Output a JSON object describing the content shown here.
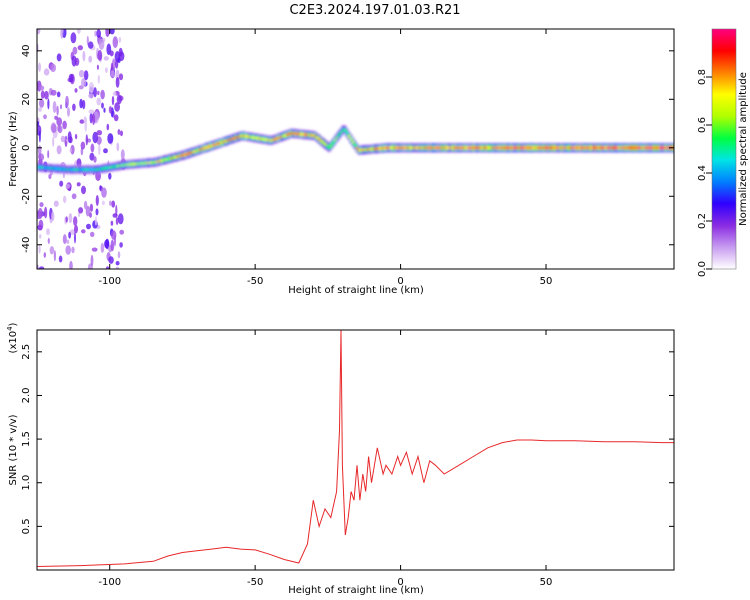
{
  "title": "C2E3.2024.197.01.03.R21",
  "chart_data": [
    {
      "type": "heatmap",
      "xlabel": "Height of straight line (km)",
      "ylabel": "Frequency (Hz)",
      "xlim": [
        -125,
        94
      ],
      "ylim": [
        -50,
        49
      ],
      "xticks": [
        -100,
        -50,
        0,
        50
      ],
      "yticks": [
        -40,
        -20,
        0,
        20,
        40
      ],
      "colorbar": {
        "label": "Normalized spectral amplitude",
        "range": [
          0,
          1
        ],
        "ticks": [
          "0.0",
          "0.2",
          "0.4",
          "0.6",
          "0.8"
        ],
        "colors": [
          "#ffffff",
          "#c89cf0",
          "#8a2be2",
          "#2f00ff",
          "#0080ff",
          "#00e5e5",
          "#00ff40",
          "#b0ff00",
          "#ffff00",
          "#ff8000",
          "#ff0000",
          "#ff0080"
        ]
      },
      "ridge": [
        {
          "x": -125,
          "y": -8,
          "amp": 0.45
        },
        {
          "x": -115,
          "y": -9,
          "amp": 0.4
        },
        {
          "x": -105,
          "y": -9,
          "amp": 0.45
        },
        {
          "x": -95,
          "y": -7,
          "amp": 0.55
        },
        {
          "x": -85,
          "y": -6,
          "amp": 0.6
        },
        {
          "x": -75,
          "y": -3,
          "amp": 0.7
        },
        {
          "x": -65,
          "y": 1,
          "amp": 0.75
        },
        {
          "x": -55,
          "y": 5,
          "amp": 0.7
        },
        {
          "x": -45,
          "y": 3,
          "amp": 0.65
        },
        {
          "x": -38,
          "y": 6,
          "amp": 0.75
        },
        {
          "x": -30,
          "y": 5,
          "amp": 0.7
        },
        {
          "x": -25,
          "y": 0,
          "amp": 0.55
        },
        {
          "x": -20,
          "y": 8,
          "amp": 0.45
        },
        {
          "x": -15,
          "y": -1,
          "amp": 0.7
        },
        {
          "x": -5,
          "y": 0,
          "amp": 0.75
        },
        {
          "x": 5,
          "y": 0,
          "amp": 0.8
        },
        {
          "x": 20,
          "y": 0,
          "amp": 0.8
        },
        {
          "x": 40,
          "y": 0,
          "amp": 0.85
        },
        {
          "x": 60,
          "y": 0,
          "amp": 0.85
        },
        {
          "x": 80,
          "y": 0,
          "amp": 0.9
        },
        {
          "x": 94,
          "y": 0,
          "amp": 0.9
        }
      ]
    },
    {
      "type": "line",
      "xlabel": "Height of straight line (km)",
      "ylabel": "SNR (10 * v/v)",
      "yscale_label": "(x10",
      "yscale_exp": "4",
      "yscale_close": ")",
      "xlim": [
        -125,
        94
      ],
      "ylim": [
        0,
        2.75
      ],
      "xticks": [
        -100,
        -50,
        0,
        50
      ],
      "yticks": [
        0.5,
        1.0,
        1.5,
        2.0,
        2.5
      ],
      "color": "#e8282a",
      "series": [
        {
          "x": [
            -125,
            -110,
            -95,
            -85,
            -80,
            -75,
            -70,
            -65,
            -60,
            -55,
            -50,
            -45,
            -40,
            -35,
            -32,
            -30,
            -28,
            -26,
            -24,
            -22,
            -21,
            -20.5,
            -20,
            -19,
            -18,
            -17,
            -16,
            -15,
            -14,
            -13,
            -12,
            -11,
            -10,
            -8,
            -6,
            -5,
            -3,
            -1,
            0,
            2,
            4,
            6,
            8,
            10,
            12,
            15,
            20,
            25,
            30,
            35,
            40,
            45,
            50,
            60,
            70,
            80,
            90,
            94
          ],
          "y": [
            0.04,
            0.05,
            0.07,
            0.1,
            0.16,
            0.2,
            0.22,
            0.24,
            0.26,
            0.24,
            0.23,
            0.18,
            0.12,
            0.08,
            0.3,
            0.8,
            0.5,
            0.7,
            0.6,
            0.9,
            1.6,
            2.75,
            1.2,
            0.4,
            0.6,
            0.9,
            0.8,
            1.2,
            0.8,
            1.1,
            0.9,
            1.3,
            1.0,
            1.4,
            1.1,
            1.2,
            1.1,
            1.3,
            1.2,
            1.35,
            1.1,
            1.3,
            1.0,
            1.25,
            1.2,
            1.1,
            1.2,
            1.3,
            1.4,
            1.46,
            1.49,
            1.49,
            1.48,
            1.48,
            1.47,
            1.47,
            1.46,
            1.46
          ]
        }
      ]
    }
  ]
}
